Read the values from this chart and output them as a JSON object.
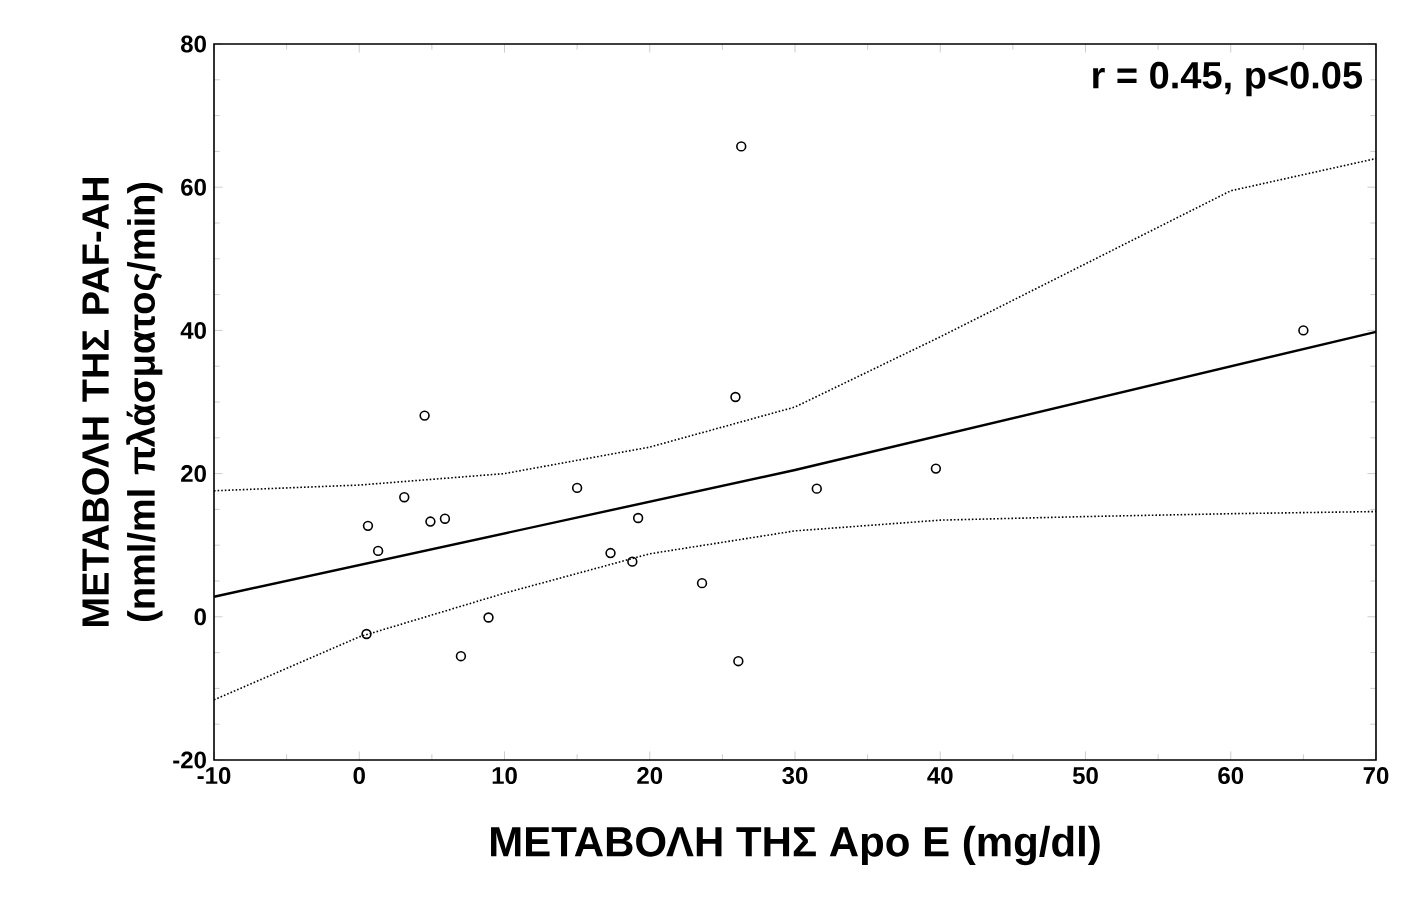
{
  "chart_data": {
    "type": "scatter",
    "xlabel": "ΜΕΤΑΒΟΛΗ ΤΗΣ Apo E (mg/dl)",
    "ylabel": "ΜΕΤΑΒΟΛΗ ΤΗΣ PAF-AH (nml/ml πλάσματος/min)",
    "annotations": [
      "r = 0.45, p<0.05"
    ],
    "xlim": [
      -10,
      70
    ],
    "ylim": [
      -20,
      80
    ],
    "xticks": [
      -10,
      0,
      10,
      20,
      30,
      40,
      50,
      60,
      70
    ],
    "yticks": [
      -20,
      0,
      20,
      40,
      60,
      80
    ],
    "grid": false,
    "series": [
      {
        "marker": "circle",
        "color": "#000000",
        "x": [
          26.3,
          25.9,
          4.5,
          3.1,
          15.0,
          0.6,
          4.9,
          5.9,
          19.2,
          1.3,
          17.3,
          18.8,
          23.6,
          0.5,
          8.9,
          7.0,
          26.1,
          31.5,
          39.7,
          65.0
        ],
        "values": [
          65.7,
          30.7,
          28.1,
          16.7,
          18.0,
          12.7,
          13.3,
          13.7,
          13.8,
          9.2,
          8.9,
          7.7,
          4.7,
          -2.4,
          -0.1,
          -5.5,
          -6.2,
          17.9,
          20.7,
          40.0
        ]
      },
      {
        "type": "line",
        "line_style": "solid",
        "marker": "none",
        "color": "#000000",
        "x": [
          -10,
          30,
          70
        ],
        "values": [
          2.8,
          20.5,
          39.8
        ]
      },
      {
        "type": "line",
        "line_style": "dotted",
        "marker": "none",
        "color": "#000000",
        "x": [
          -10,
          0,
          10,
          20,
          30,
          40,
          50,
          60,
          70
        ],
        "values": [
          17.6,
          18.4,
          20.0,
          23.7,
          29.3,
          39.1,
          49.3,
          59.5,
          64.0
        ]
      },
      {
        "type": "line",
        "line_style": "dotted",
        "marker": "none",
        "color": "#000000",
        "x": [
          -10,
          0,
          10,
          20,
          30,
          40,
          50,
          60,
          70
        ],
        "values": [
          -11.6,
          -2.8,
          3.3,
          8.8,
          12.0,
          13.5,
          14.0,
          14.4,
          14.7
        ]
      }
    ]
  }
}
